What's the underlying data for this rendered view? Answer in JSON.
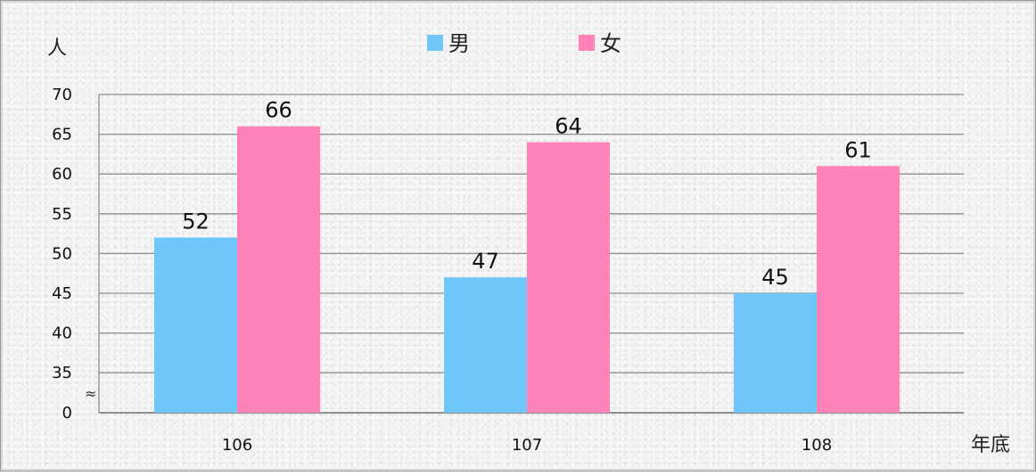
{
  "chart_data": {
    "type": "bar",
    "categories": [
      "106",
      "107",
      "108"
    ],
    "series": [
      {
        "name": "男",
        "values": [
          52,
          47,
          45
        ],
        "color": "#6EC6FA"
      },
      {
        "name": "女",
        "values": [
          66,
          64,
          61
        ],
        "color": "#FF83B8"
      }
    ],
    "ylabel": "人",
    "xlabel": "年底",
    "yticks": [
      0,
      35,
      40,
      45,
      50,
      55,
      60,
      65,
      70
    ],
    "ylim": [
      30,
      70
    ],
    "axis_break": "≈",
    "grid": true,
    "legend_position": "top-center"
  }
}
